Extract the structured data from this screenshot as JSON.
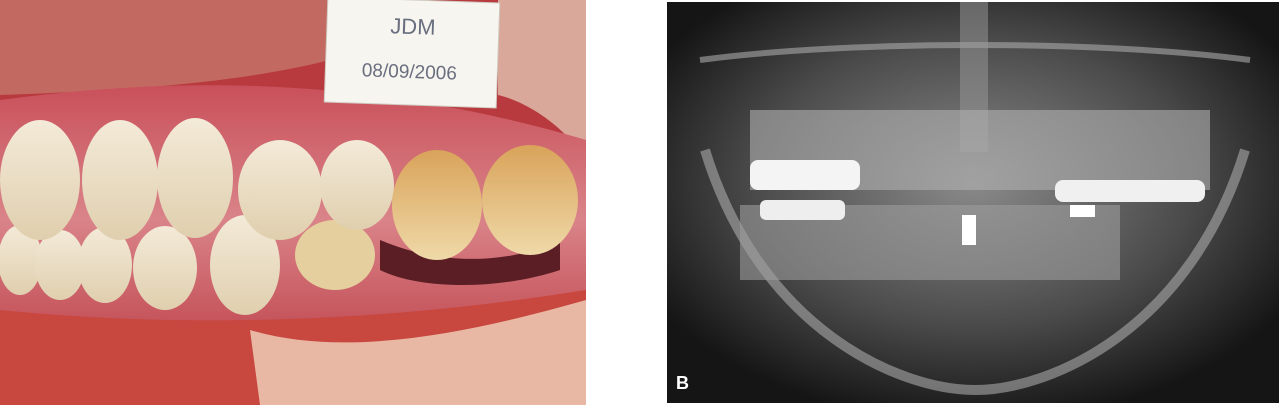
{
  "panels": [
    {
      "label_card": {
        "name": "JDM",
        "date": "08/09/2006"
      }
    },
    {
      "letter": "B"
    }
  ]
}
